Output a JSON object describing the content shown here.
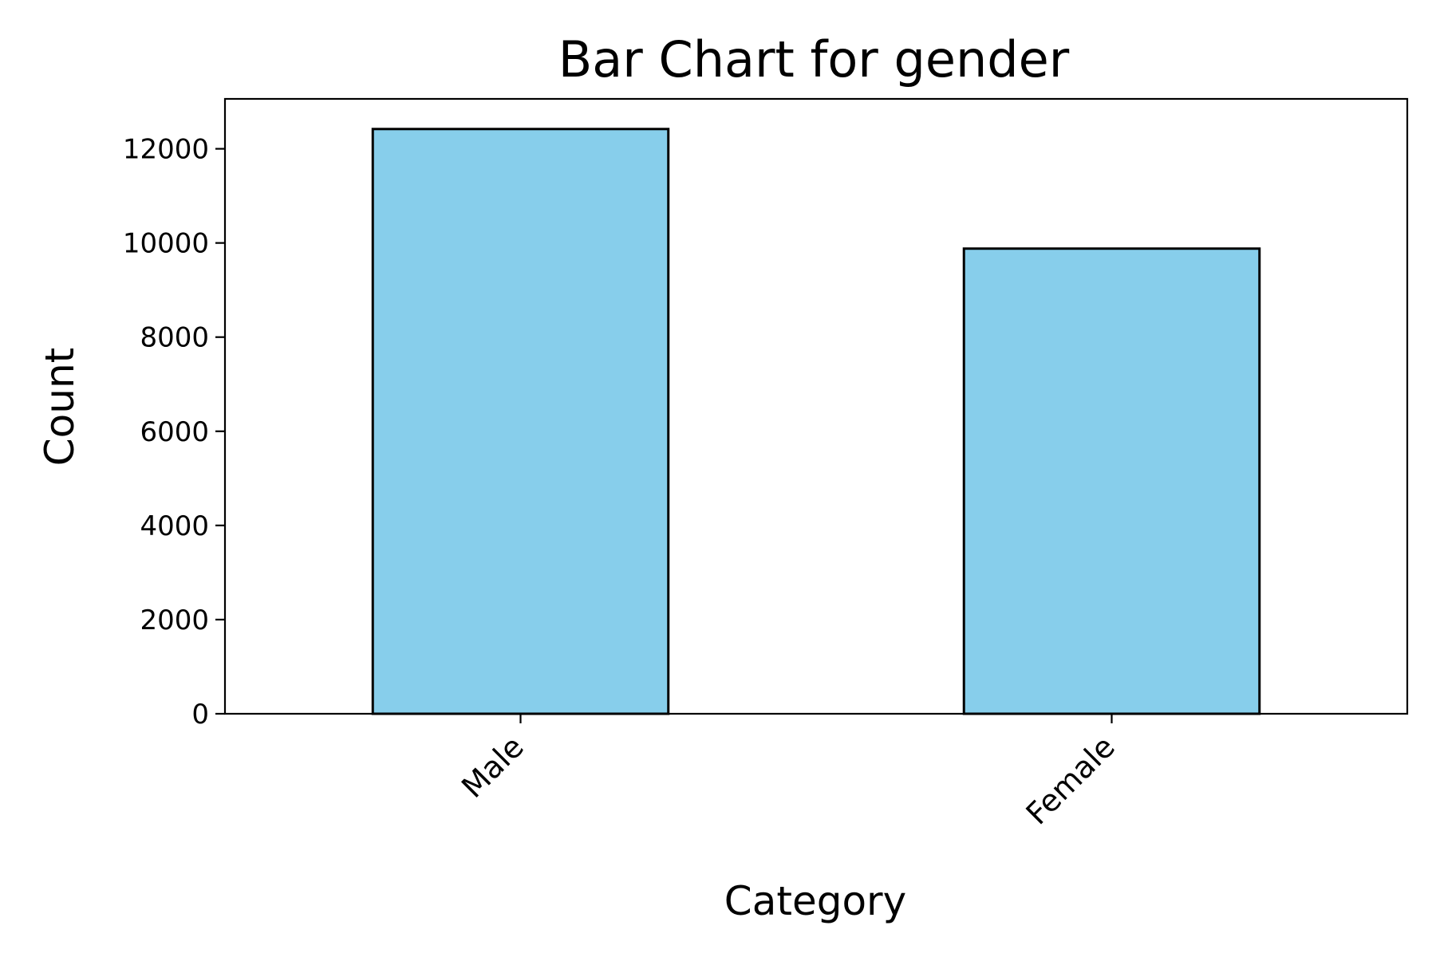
{
  "chart_data": {
    "type": "bar",
    "title": "Bar Chart for gender",
    "xlabel": "Category",
    "ylabel": "Count",
    "categories": [
      "Male",
      "Female"
    ],
    "values": [
      12420,
      9880
    ],
    "ylim": [
      0,
      13060
    ],
    "yticks": [
      0,
      2000,
      4000,
      6000,
      8000,
      10000,
      12000
    ],
    "bar_color": "#87ceeb",
    "edge_color": "#000000",
    "grid": false,
    "legend": "none"
  }
}
